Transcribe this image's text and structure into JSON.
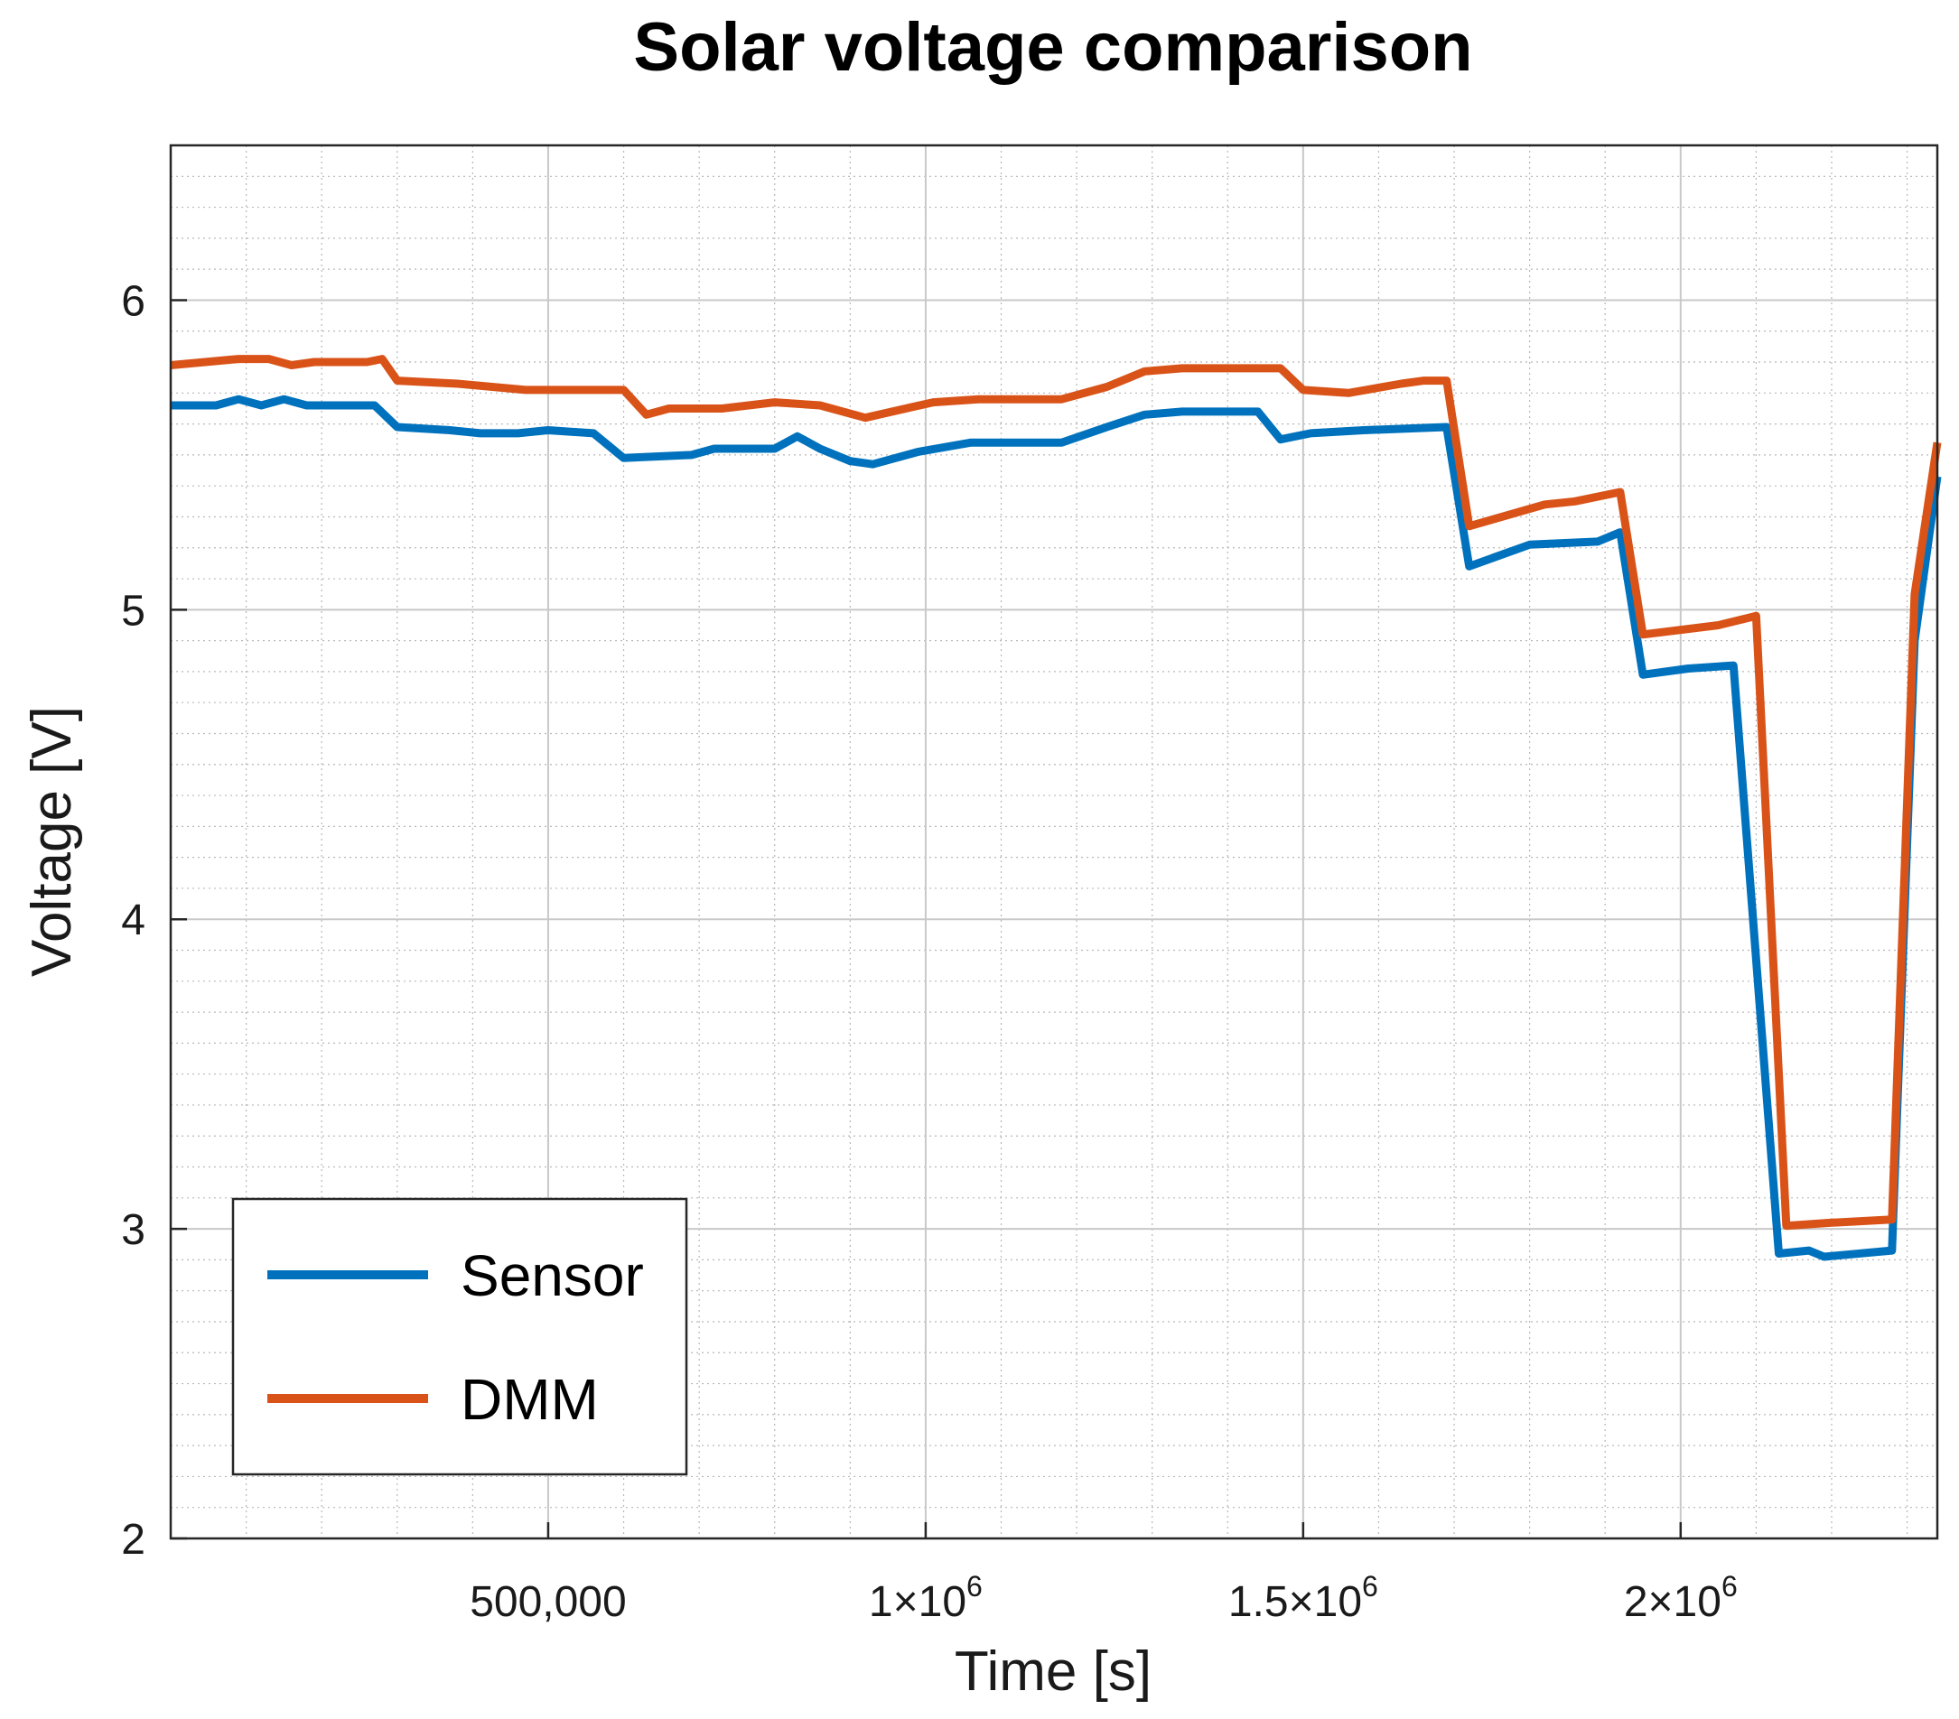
{
  "chart_data": {
    "type": "line",
    "title": "Solar voltage comparison",
    "xlabel": "Time [s]",
    "ylabel": "Voltage [V]",
    "xlim": [
      0,
      2340000
    ],
    "ylim": [
      2,
      6.5
    ],
    "grid": true,
    "legend_position": "bottom-left",
    "x_ticks": [
      {
        "value": 500000,
        "label": "500,000",
        "mantissa": "",
        "exp": ""
      },
      {
        "value": 1000000,
        "label": "",
        "mantissa": "1×10",
        "exp": "6"
      },
      {
        "value": 1500000,
        "label": "",
        "mantissa": "1.5×10",
        "exp": "6"
      },
      {
        "value": 2000000,
        "label": "",
        "mantissa": "2×10",
        "exp": "6"
      }
    ],
    "y_ticks": [
      {
        "value": 2,
        "label": "2"
      },
      {
        "value": 3,
        "label": "3"
      },
      {
        "value": 4,
        "label": "4"
      },
      {
        "value": 5,
        "label": "5"
      },
      {
        "value": 6,
        "label": "6"
      }
    ],
    "series": [
      {
        "name": "Sensor",
        "color": "#0072BD",
        "points": [
          [
            0,
            5.66
          ],
          [
            60000,
            5.66
          ],
          [
            90000,
            5.68
          ],
          [
            120000,
            5.66
          ],
          [
            150000,
            5.68
          ],
          [
            180000,
            5.66
          ],
          [
            240000,
            5.66
          ],
          [
            270000,
            5.66
          ],
          [
            300000,
            5.59
          ],
          [
            370000,
            5.58
          ],
          [
            410000,
            5.57
          ],
          [
            460000,
            5.57
          ],
          [
            500000,
            5.58
          ],
          [
            560000,
            5.57
          ],
          [
            600000,
            5.49
          ],
          [
            690000,
            5.5
          ],
          [
            720000,
            5.52
          ],
          [
            800000,
            5.52
          ],
          [
            830000,
            5.56
          ],
          [
            860000,
            5.52
          ],
          [
            900000,
            5.48
          ],
          [
            930000,
            5.47
          ],
          [
            990000,
            5.51
          ],
          [
            1060000,
            5.54
          ],
          [
            1180000,
            5.54
          ],
          [
            1240000,
            5.59
          ],
          [
            1290000,
            5.63
          ],
          [
            1340000,
            5.64
          ],
          [
            1440000,
            5.64
          ],
          [
            1470000,
            5.55
          ],
          [
            1510000,
            5.57
          ],
          [
            1580000,
            5.58
          ],
          [
            1690000,
            5.59
          ],
          [
            1720000,
            5.14
          ],
          [
            1800000,
            5.21
          ],
          [
            1890000,
            5.22
          ],
          [
            1920000,
            5.25
          ],
          [
            1950000,
            4.79
          ],
          [
            2010000,
            4.81
          ],
          [
            2070000,
            4.82
          ],
          [
            2130000,
            2.92
          ],
          [
            2170000,
            2.93
          ],
          [
            2190000,
            2.91
          ],
          [
            2280000,
            2.93
          ],
          [
            2310000,
            4.9
          ],
          [
            2340000,
            5.43
          ]
        ]
      },
      {
        "name": "DMM",
        "color": "#D95319",
        "points": [
          [
            0,
            5.79
          ],
          [
            90000,
            5.81
          ],
          [
            130000,
            5.81
          ],
          [
            160000,
            5.79
          ],
          [
            190000,
            5.8
          ],
          [
            260000,
            5.8
          ],
          [
            280000,
            5.81
          ],
          [
            300000,
            5.74
          ],
          [
            380000,
            5.73
          ],
          [
            470000,
            5.71
          ],
          [
            530000,
            5.71
          ],
          [
            600000,
            5.71
          ],
          [
            630000,
            5.63
          ],
          [
            660000,
            5.65
          ],
          [
            730000,
            5.65
          ],
          [
            800000,
            5.67
          ],
          [
            860000,
            5.66
          ],
          [
            920000,
            5.62
          ],
          [
            1010000,
            5.67
          ],
          [
            1070000,
            5.68
          ],
          [
            1180000,
            5.68
          ],
          [
            1240000,
            5.72
          ],
          [
            1290000,
            5.77
          ],
          [
            1340000,
            5.78
          ],
          [
            1430000,
            5.78
          ],
          [
            1470000,
            5.78
          ],
          [
            1500000,
            5.71
          ],
          [
            1560000,
            5.7
          ],
          [
            1630000,
            5.73
          ],
          [
            1660000,
            5.74
          ],
          [
            1690000,
            5.74
          ],
          [
            1720000,
            5.27
          ],
          [
            1820000,
            5.34
          ],
          [
            1860000,
            5.35
          ],
          [
            1920000,
            5.38
          ],
          [
            1950000,
            4.92
          ],
          [
            2050000,
            4.95
          ],
          [
            2100000,
            4.98
          ],
          [
            2140000,
            3.01
          ],
          [
            2200000,
            3.02
          ],
          [
            2280000,
            3.03
          ],
          [
            2310000,
            5.05
          ],
          [
            2340000,
            5.54
          ]
        ]
      }
    ]
  }
}
